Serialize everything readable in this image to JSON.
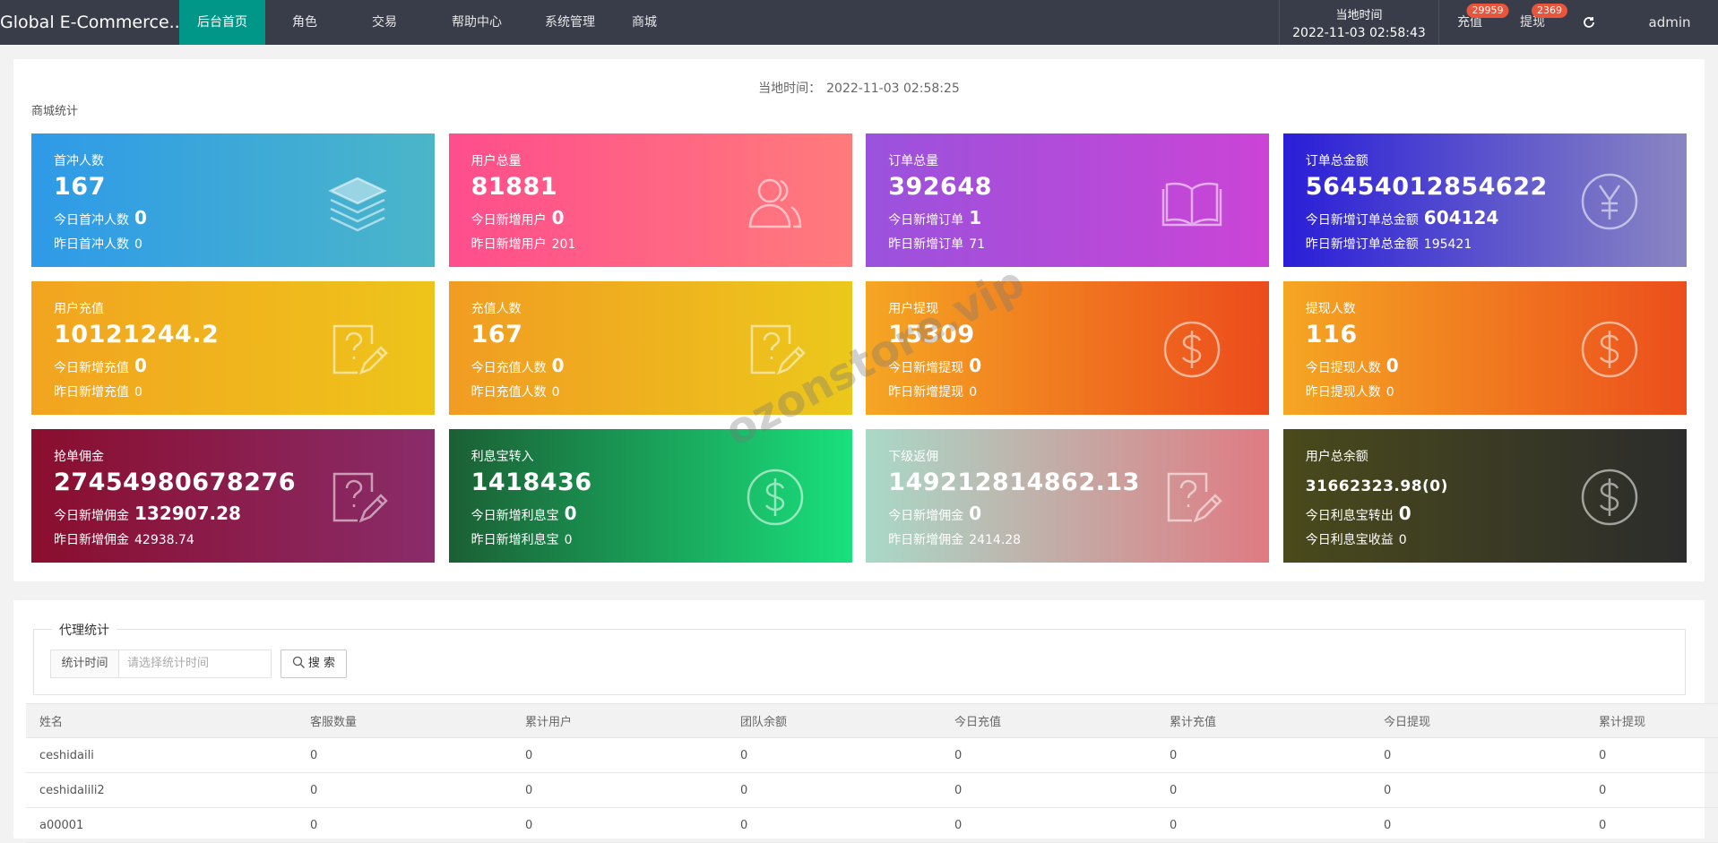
{
  "nav": {
    "brand": "Global E-Commerce...",
    "items": [
      "后台首页",
      "角色",
      "交易",
      "帮助中心",
      "系统管理",
      "商城"
    ],
    "time_label": "当地时间",
    "time_value": "2022-11-03 02:58:43",
    "recharge": {
      "label": "充值",
      "badge": "29959"
    },
    "withdraw": {
      "label": "提现",
      "badge": "2369"
    },
    "user": "admin"
  },
  "stats": {
    "time_label": "当地时间：",
    "time_value": "2022-11-03 02:58:25",
    "title": "商城统计",
    "cards": [
      {
        "label": "首冲人数",
        "value": "167",
        "line1": {
          "label": "今日首冲人数",
          "value": "0"
        },
        "line2": {
          "label": "昨日首冲人数",
          "value": "0"
        }
      },
      {
        "label": "用户总量",
        "value": "81881",
        "line1": {
          "label": "今日新增用户",
          "value": "0"
        },
        "line2": {
          "label": "昨日新增用户",
          "value": "201"
        }
      },
      {
        "label": "订单总量",
        "value": "392648",
        "line1": {
          "label": "今日新增订单",
          "value": "1"
        },
        "line2": {
          "label": "昨日新增订单",
          "value": "71"
        }
      },
      {
        "label": "订单总金额",
        "value": "56454012854622",
        "line1": {
          "label": "今日新增订单总金额",
          "value": "604124"
        },
        "line2": {
          "label": "昨日新增订单总金额",
          "value": "195421"
        }
      },
      {
        "label": "用户充值",
        "value": "10121244.2",
        "line1": {
          "label": "今日新增充值",
          "value": "0"
        },
        "line2": {
          "label": "昨日新增充值",
          "value": "0"
        }
      },
      {
        "label": "充值人数",
        "value": "167",
        "line1": {
          "label": "今日充值人数",
          "value": "0"
        },
        "line2": {
          "label": "昨日充值人数",
          "value": "0"
        }
      },
      {
        "label": "用户提现",
        "value": "15309",
        "line1": {
          "label": "今日新增提现",
          "value": "0"
        },
        "line2": {
          "label": "昨日新增提现",
          "value": "0"
        }
      },
      {
        "label": "提现人数",
        "value": "116",
        "line1": {
          "label": "今日提现人数",
          "value": "0"
        },
        "line2": {
          "label": "昨日提现人数",
          "value": "0"
        }
      },
      {
        "label": "抢单佣金",
        "value": "27454980678276",
        "line1": {
          "label": "今日新增佣金",
          "value": "132907.28"
        },
        "line2": {
          "label": "昨日新增佣金",
          "value": "42938.74"
        }
      },
      {
        "label": "利息宝转入",
        "value": "1418436",
        "line1": {
          "label": "今日新增利息宝",
          "value": "0"
        },
        "line2": {
          "label": "昨日新增利息宝",
          "value": "0"
        }
      },
      {
        "label": "下级返佣",
        "value": "149212814862.13",
        "line1": {
          "label": "今日新增佣金",
          "value": "0"
        },
        "line2": {
          "label": "昨日新增佣金",
          "value": "2414.28"
        }
      },
      {
        "label": "用户总余额",
        "value": "31662323.98(0)",
        "line1": {
          "label": "今日利息宝转出",
          "value": "0"
        },
        "line2": {
          "label": "今日利息宝收益",
          "value": "0"
        }
      }
    ]
  },
  "agent": {
    "legend": "代理统计",
    "filter_label": "统计时间",
    "filter_placeholder": "请选择统计时间",
    "search": "搜 索",
    "table": {
      "headers": [
        "姓名",
        "客服数量",
        "累计用户",
        "团队余额",
        "今日充值",
        "累计充值",
        "今日提现",
        "累计提现"
      ],
      "rows": [
        [
          "ceshidaili",
          "0",
          "0",
          "0",
          "0",
          "0",
          "0",
          "0"
        ],
        [
          "ceshidalili2",
          "0",
          "0",
          "0",
          "0",
          "0",
          "0",
          "0"
        ],
        [
          "a00001",
          "0",
          "0",
          "0",
          "0",
          "0",
          "0",
          "0"
        ]
      ]
    }
  },
  "watermark": "ozonstore.vip"
}
